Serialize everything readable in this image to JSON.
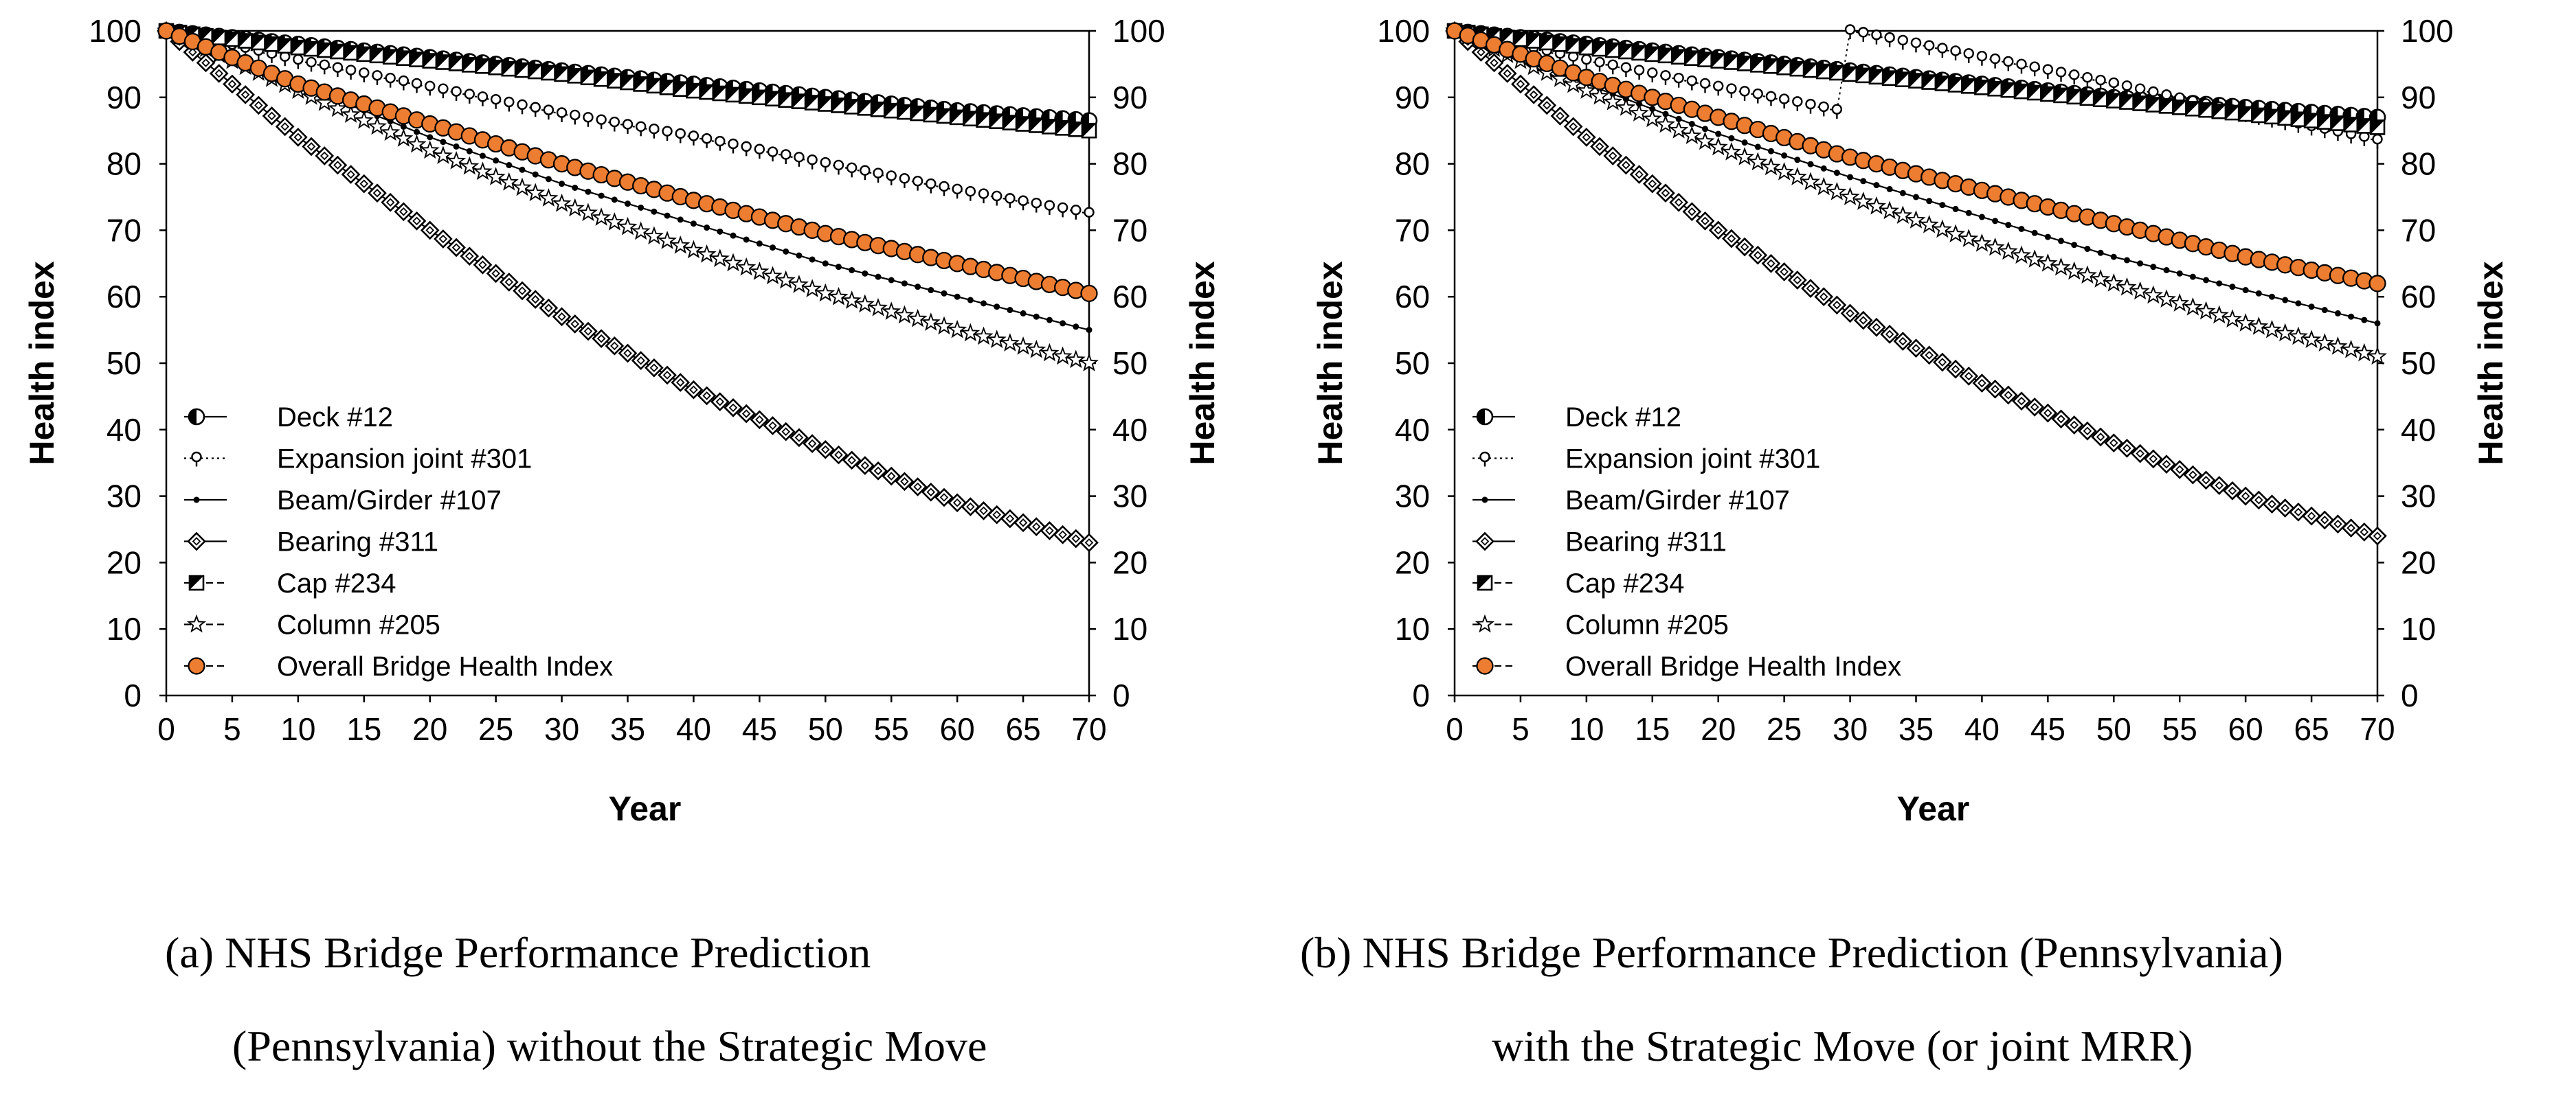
{
  "chart_data": [
    {
      "type": "line",
      "panel": "a",
      "caption_line1": "(a) NHS Bridge Performance Prediction",
      "caption_line2": "(Pennsylvania) without the Strategic Move",
      "xlabel": "Year",
      "ylabel_left": "Health index",
      "ylabel_right": "Health index",
      "xlim": [
        0,
        70
      ],
      "ylim": [
        0,
        100
      ],
      "xticks": [
        0,
        5,
        10,
        15,
        20,
        25,
        30,
        35,
        40,
        45,
        50,
        55,
        60,
        65,
        70
      ],
      "yticks": [
        0,
        10,
        20,
        30,
        40,
        50,
        60,
        70,
        80,
        90,
        100
      ],
      "grid": false,
      "legend_position": "lower-left",
      "x_step": 1,
      "series": [
        {
          "name": "Deck #12",
          "marker": "half-circle",
          "line": "solid",
          "color": "#000000",
          "y_at": {
            "0": 100,
            "10": 98,
            "20": 96,
            "30": 94,
            "40": 92,
            "50": 90,
            "60": 88,
            "70": 86.5
          }
        },
        {
          "name": "Expansion joint #301",
          "marker": "pin-circle",
          "line": "dotted",
          "color": "#000000",
          "y_at": {
            "0": 100,
            "10": 95.5,
            "20": 91.5,
            "30": 87.5,
            "40": 84,
            "50": 80,
            "60": 76,
            "70": 72.5
          }
        },
        {
          "name": "Beam/Girder #107",
          "marker": "small-dot",
          "line": "solid",
          "color": "#000000",
          "y_at": {
            "0": 100,
            "10": 92,
            "20": 84,
            "30": 77,
            "40": 71,
            "50": 65,
            "60": 60,
            "70": 55
          }
        },
        {
          "name": "Bearing #311",
          "marker": "diamond",
          "line": "solid",
          "color": "#000000",
          "y_at": {
            "0": 100,
            "10": 84,
            "20": 70,
            "30": 57,
            "40": 46,
            "50": 37,
            "60": 29,
            "70": 23
          }
        },
        {
          "name": "Cap #234",
          "marker": "half-square",
          "line": "dashed",
          "color": "#000000",
          "y_at": {
            "0": 100,
            "10": 97.5,
            "20": 95.5,
            "30": 93.5,
            "40": 91,
            "50": 89,
            "60": 87,
            "70": 85
          }
        },
        {
          "name": "Column #205",
          "marker": "star",
          "line": "dashed",
          "color": "#000000",
          "y_at": {
            "0": 100,
            "10": 91,
            "20": 82,
            "30": 74,
            "40": 67,
            "50": 60.5,
            "60": 55,
            "70": 50
          }
        },
        {
          "name": "Overall Bridge Health Index",
          "marker": "circle",
          "line": "dashed",
          "color": "#ED7D31",
          "y_at": {
            "0": 100,
            "10": 92,
            "20": 86,
            "30": 80,
            "40": 74.5,
            "50": 69.5,
            "60": 65,
            "70": 60.5
          }
        }
      ]
    },
    {
      "type": "line",
      "panel": "b",
      "caption_line1": "(b) NHS Bridge Performance Prediction (Pennsylvania)",
      "caption_line2": "with the Strategic Move (or joint MRR)",
      "xlabel": "Year",
      "ylabel_left": "Health index",
      "ylabel_right": "Health index",
      "xlim": [
        0,
        70
      ],
      "ylim": [
        0,
        100
      ],
      "xticks": [
        0,
        5,
        10,
        15,
        20,
        25,
        30,
        35,
        40,
        45,
        50,
        55,
        60,
        65,
        70
      ],
      "yticks": [
        0,
        10,
        20,
        30,
        40,
        50,
        60,
        70,
        80,
        90,
        100
      ],
      "grid": false,
      "legend_position": "lower-left",
      "x_step": 1,
      "series": [
        {
          "name": "Deck #12",
          "marker": "half-circle",
          "line": "solid",
          "color": "#000000",
          "y_at": {
            "0": 100,
            "10": 98,
            "20": 96,
            "30": 94,
            "40": 92,
            "50": 90,
            "60": 88.5,
            "70": 87
          }
        },
        {
          "name": "Expansion joint #301",
          "marker": "pin-circle",
          "line": "dotted",
          "color": "#000000",
          "y_at": {
            "0": 100,
            "10": 95.5,
            "20": 91.5,
            "29": 88,
            "30": 100,
            "40": 96,
            "50": 92,
            "60": 87.5,
            "70": 83.5
          }
        },
        {
          "name": "Beam/Girder #107",
          "marker": "small-dot",
          "line": "solid",
          "color": "#000000",
          "y_at": {
            "0": 100,
            "10": 92,
            "20": 84.5,
            "30": 78,
            "40": 72,
            "50": 66,
            "60": 61,
            "70": 56
          }
        },
        {
          "name": "Bearing #311",
          "marker": "diamond",
          "line": "solid",
          "color": "#000000",
          "y_at": {
            "0": 100,
            "10": 84,
            "20": 70,
            "30": 57.5,
            "40": 47,
            "50": 38,
            "60": 30,
            "70": 24
          }
        },
        {
          "name": "Cap #234",
          "marker": "half-square",
          "line": "dashed",
          "color": "#000000",
          "y_at": {
            "0": 100,
            "10": 97.5,
            "20": 95.5,
            "30": 93.5,
            "40": 91.5,
            "50": 89.5,
            "60": 87.5,
            "70": 85.5
          }
        },
        {
          "name": "Column #205",
          "marker": "star",
          "line": "dashed",
          "color": "#000000",
          "y_at": {
            "0": 100,
            "10": 91,
            "20": 82.5,
            "30": 75,
            "40": 68,
            "50": 62,
            "60": 56,
            "70": 51
          }
        },
        {
          "name": "Overall Bridge Health Index",
          "marker": "circle",
          "line": "dashed",
          "color": "#ED7D31",
          "y_at": {
            "0": 100,
            "10": 93,
            "20": 87,
            "29": 81.5,
            "30": 81,
            "40": 76,
            "50": 71,
            "60": 66,
            "70": 62
          }
        }
      ]
    }
  ]
}
